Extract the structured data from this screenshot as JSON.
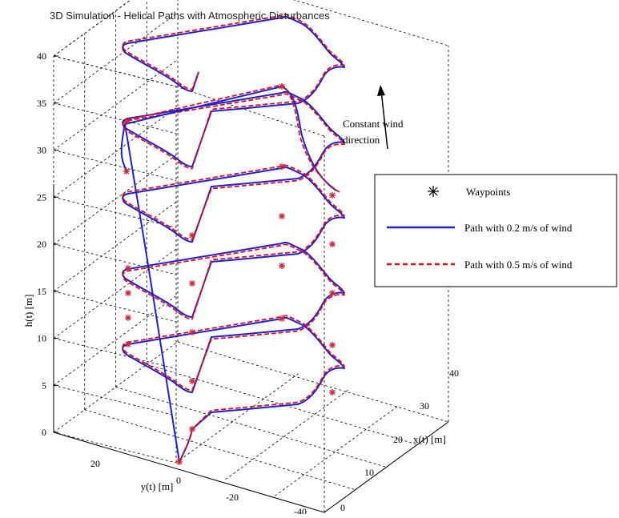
{
  "chart_data": {
    "type": "line",
    "title": "3D Simulation - Helical Paths with Atmospheric Disturbances",
    "zlabel": "h(t) [m]",
    "ylabel": "y(t) [m]",
    "xlabel": "x(t) [m]",
    "z_ticks": [
      "0",
      "5",
      "10",
      "15",
      "20",
      "25",
      "30",
      "35",
      "40"
    ],
    "y_ticks": [
      "20",
      "0",
      "-20",
      "-40"
    ],
    "x_ticks": [
      "0",
      "10",
      "20",
      "30",
      "40"
    ],
    "grid": true,
    "legend_position": "right",
    "annotation": "Constant wind direction",
    "series": [
      {
        "name": "Waypoints",
        "color": "#c8283c",
        "marker": "asterisk"
      },
      {
        "name": "Path with 0.2 m/s of wind",
        "color": "#1f1fd6",
        "style": "solid"
      },
      {
        "name": "Path with 0.5 m/s of wind",
        "color": "#e01010",
        "style": "dashed"
      }
    ]
  }
}
